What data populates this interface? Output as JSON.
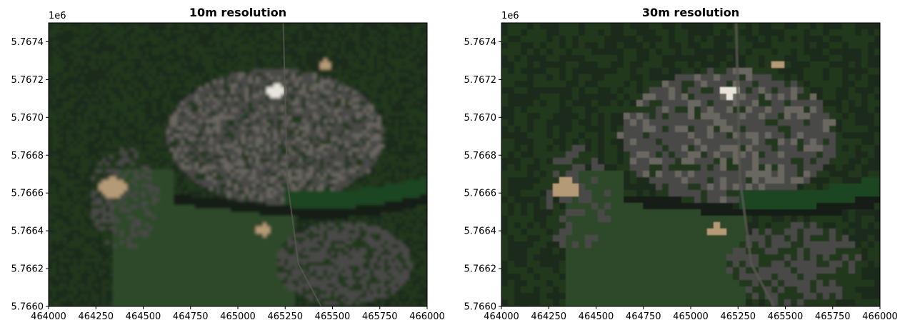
{
  "chart_data": [
    {
      "type": "heatmap",
      "title": "10m resolution",
      "offset_text": "1e6",
      "xlim": [
        464000,
        466000
      ],
      "ylim": [
        5766000,
        5767500
      ],
      "x_ticks": [
        "464000",
        "464250",
        "464500",
        "464750",
        "465000",
        "465250",
        "465500",
        "465750",
        "466000"
      ],
      "y_ticks": [
        "5.7660",
        "5.7662",
        "5.7664",
        "5.7666",
        "5.7668",
        "5.7670",
        "5.7672",
        "5.7674"
      ],
      "resolution_m": 10
    },
    {
      "type": "heatmap",
      "title": "30m resolution",
      "offset_text": "1e6",
      "xlim": [
        464000,
        466000
      ],
      "ylim": [
        5766000,
        5767500
      ],
      "x_ticks": [
        "464000",
        "464250",
        "464500",
        "464750",
        "465000",
        "465250",
        "465500",
        "465750",
        "466000"
      ],
      "y_ticks": [
        "5.7660",
        "5.7662",
        "5.7664",
        "5.7666",
        "5.7668",
        "5.7670",
        "5.7672",
        "5.7674"
      ],
      "resolution_m": 30
    }
  ],
  "colors": {
    "vegetation_dark": "#1c2a1a",
    "vegetation": "#24381f",
    "field_green": "#2f4a29",
    "river_green": "#1d4423",
    "urban": "#4a4a46",
    "urban_light": "#6a6660",
    "sand": "#b59a76",
    "bright": "#e8e4dc"
  }
}
